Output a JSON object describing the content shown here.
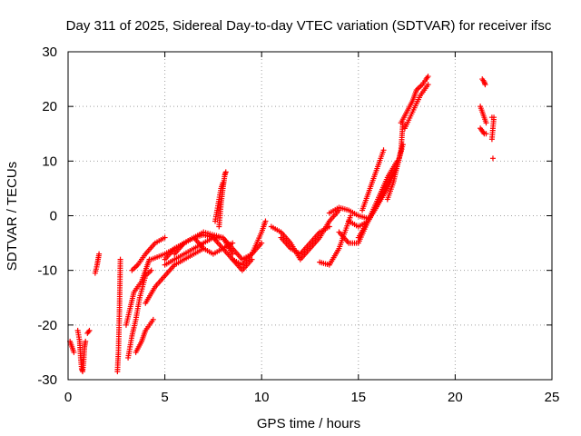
{
  "chart_data": {
    "type": "scatter",
    "title": "Day 311 of 2025, Sidereal Day-to-day VTEC variation (SDTVAR) for receiver ifsc",
    "xlabel": "GPS time / hours",
    "ylabel": "SDTVAR / TECUs",
    "xlim": [
      0,
      25
    ],
    "ylim": [
      -30,
      30
    ],
    "xticks": [
      0,
      5,
      10,
      15,
      20,
      25
    ],
    "yticks": [
      -30,
      -20,
      -10,
      0,
      10,
      20,
      30
    ],
    "grid": true,
    "marker": "+",
    "color": "#ff0000",
    "tracks": [
      {
        "name": "track-1",
        "x": [
          0.1,
          0.2,
          0.3
        ],
        "y": [
          -23,
          -24,
          -25
        ]
      },
      {
        "name": "track-2",
        "x": [
          0.5,
          0.6,
          0.65,
          0.7,
          0.75,
          0.8,
          0.85,
          0.9
        ],
        "y": [
          -21,
          -23,
          -26,
          -28,
          -28.5,
          -27,
          -24,
          -23
        ]
      },
      {
        "name": "track-3",
        "x": [
          1.0,
          1.1
        ],
        "y": [
          -21.5,
          -21
        ]
      },
      {
        "name": "track-4",
        "x": [
          1.4,
          1.5,
          1.55,
          1.6
        ],
        "y": [
          -10.5,
          -9,
          -8,
          -7
        ]
      },
      {
        "name": "track-5",
        "x": [
          2.55,
          2.6,
          2.65,
          2.7
        ],
        "y": [
          -28.5,
          -25,
          -18,
          -8
        ]
      },
      {
        "name": "track-6",
        "x": [
          3.1,
          3.3,
          3.5,
          3.7,
          4.0,
          4.3
        ],
        "y": [
          -26,
          -22,
          -19,
          -15,
          -11,
          -10
        ]
      },
      {
        "name": "track-7",
        "x": [
          3.0,
          3.2,
          3.4,
          3.6,
          3.8,
          4.0,
          4.2
        ],
        "y": [
          -20,
          -17,
          -14,
          -13,
          -12,
          -10,
          -8
        ]
      },
      {
        "name": "track-8",
        "x": [
          3.3,
          3.6,
          4.0,
          4.5,
          5.0
        ],
        "y": [
          -10,
          -9,
          -7,
          -5,
          -4
        ]
      },
      {
        "name": "track-9",
        "x": [
          3.5,
          3.8,
          4.0,
          4.2,
          4.4
        ],
        "y": [
          -25,
          -23,
          -21,
          -20,
          -19
        ]
      },
      {
        "name": "track-10",
        "x": [
          4.0,
          4.5,
          5.0,
          5.5,
          6.0,
          6.5,
          7.0
        ],
        "y": [
          -16,
          -13,
          -11,
          -9,
          -8,
          -7,
          -6
        ]
      },
      {
        "name": "track-11",
        "x": [
          4.3,
          5.0,
          6.0,
          7.0,
          8.0,
          8.5,
          9.0,
          9.5,
          10.0
        ],
        "y": [
          -8,
          -7,
          -5,
          -3,
          -4,
          -6,
          -8,
          -7,
          -5
        ]
      },
      {
        "name": "track-12",
        "x": [
          5.0,
          6.0,
          6.5,
          7.0,
          7.5,
          8.0,
          8.5
        ],
        "y": [
          -9,
          -7,
          -6,
          -5,
          -4,
          -4,
          -7
        ]
      },
      {
        "name": "track-13",
        "x": [
          5.5,
          6.0,
          6.5,
          7.0,
          7.5,
          8.0,
          8.5,
          9.0,
          9.5
        ],
        "y": [
          -7,
          -5,
          -4,
          -3.5,
          -4,
          -6,
          -8,
          -10,
          -8
        ]
      },
      {
        "name": "track-14",
        "x": [
          5.0,
          5.5,
          6.0,
          6.5,
          7.0,
          7.5,
          8.0,
          8.5
        ],
        "y": [
          -8,
          -6,
          -5,
          -4,
          -6,
          -7,
          -6,
          -5
        ]
      },
      {
        "name": "track-15",
        "x": [
          7.8,
          7.9,
          8.0,
          8.1,
          8.15
        ],
        "y": [
          -2,
          2,
          5,
          7.5,
          8
        ]
      },
      {
        "name": "track-16",
        "x": [
          7.6,
          7.7,
          7.8,
          7.9,
          8.0
        ],
        "y": [
          -1,
          1,
          3,
          5,
          6
        ]
      },
      {
        "name": "track-17",
        "x": [
          8.5,
          9.0,
          9.5,
          10.0,
          10.2
        ],
        "y": [
          -8,
          -9,
          -7,
          -3,
          -1
        ]
      },
      {
        "name": "track-18",
        "x": [
          10.5,
          11,
          11.5,
          12,
          12.5,
          13,
          13.5,
          14
        ],
        "y": [
          -2,
          -3,
          -5,
          -8,
          -6,
          -4,
          -1,
          1
        ]
      },
      {
        "name": "track-19",
        "x": [
          11.0,
          11.5,
          12.0,
          12.5,
          13.0,
          13.5
        ],
        "y": [
          -4,
          -6,
          -7,
          -5,
          -3,
          -2
        ]
      },
      {
        "name": "track-20",
        "x": [
          13.0,
          13.5,
          14.0,
          14.3,
          14.6
        ],
        "y": [
          -8.5,
          -9,
          -6,
          -3,
          0
        ]
      },
      {
        "name": "track-21",
        "x": [
          13.5,
          14.0,
          14.5,
          15.0,
          15.5
        ],
        "y": [
          0.5,
          1.5,
          1,
          0,
          -0.5
        ]
      },
      {
        "name": "track-22",
        "x": [
          14.0,
          14.5,
          15.0,
          15.5,
          16.0,
          16.5,
          17.0
        ],
        "y": [
          -3,
          -5,
          -5,
          -1,
          3,
          7,
          10
        ]
      },
      {
        "name": "track-23",
        "x": [
          14.5,
          15.0,
          15.5,
          16.0,
          16.5,
          17.0
        ],
        "y": [
          -1,
          -2,
          -1,
          2,
          5,
          9
        ]
      },
      {
        "name": "track-24",
        "x": [
          15.0,
          15.5,
          16.0,
          16.5,
          17.0,
          17.3
        ],
        "y": [
          -4,
          -1,
          2,
          6,
          9,
          13
        ]
      },
      {
        "name": "track-25",
        "x": [
          15.2,
          15.6,
          16.0,
          16.3
        ],
        "y": [
          1,
          5,
          9,
          12
        ]
      },
      {
        "name": "track-26",
        "x": [
          16.5,
          16.8,
          17.0,
          17.2,
          17.3
        ],
        "y": [
          3,
          6,
          9,
          12,
          17
        ]
      },
      {
        "name": "track-27",
        "x": [
          17.2,
          17.5,
          17.8,
          18.0,
          18.3,
          18.5,
          18.6
        ],
        "y": [
          17,
          19,
          21,
          23,
          24,
          25,
          25.5
        ]
      },
      {
        "name": "track-28",
        "x": [
          17.4,
          17.8,
          18.2,
          18.6
        ],
        "y": [
          16,
          19,
          22,
          24
        ]
      },
      {
        "name": "track-29",
        "x": [
          21.4,
          21.5,
          21.55
        ],
        "y": [
          25,
          24.5,
          24
        ]
      },
      {
        "name": "track-30",
        "x": [
          21.3,
          21.4,
          21.5,
          21.6
        ],
        "y": [
          20,
          19,
          18,
          17
        ]
      },
      {
        "name": "track-31",
        "x": [
          21.3,
          21.4,
          21.5,
          21.6
        ],
        "y": [
          16,
          15.5,
          15,
          15
        ]
      },
      {
        "name": "track-32",
        "x": [
          21.9,
          22.0,
          21.9
        ],
        "y": [
          18,
          18,
          14
        ]
      },
      {
        "name": "track-33",
        "x": [
          21.95
        ],
        "y": [
          10.5
        ]
      }
    ]
  }
}
